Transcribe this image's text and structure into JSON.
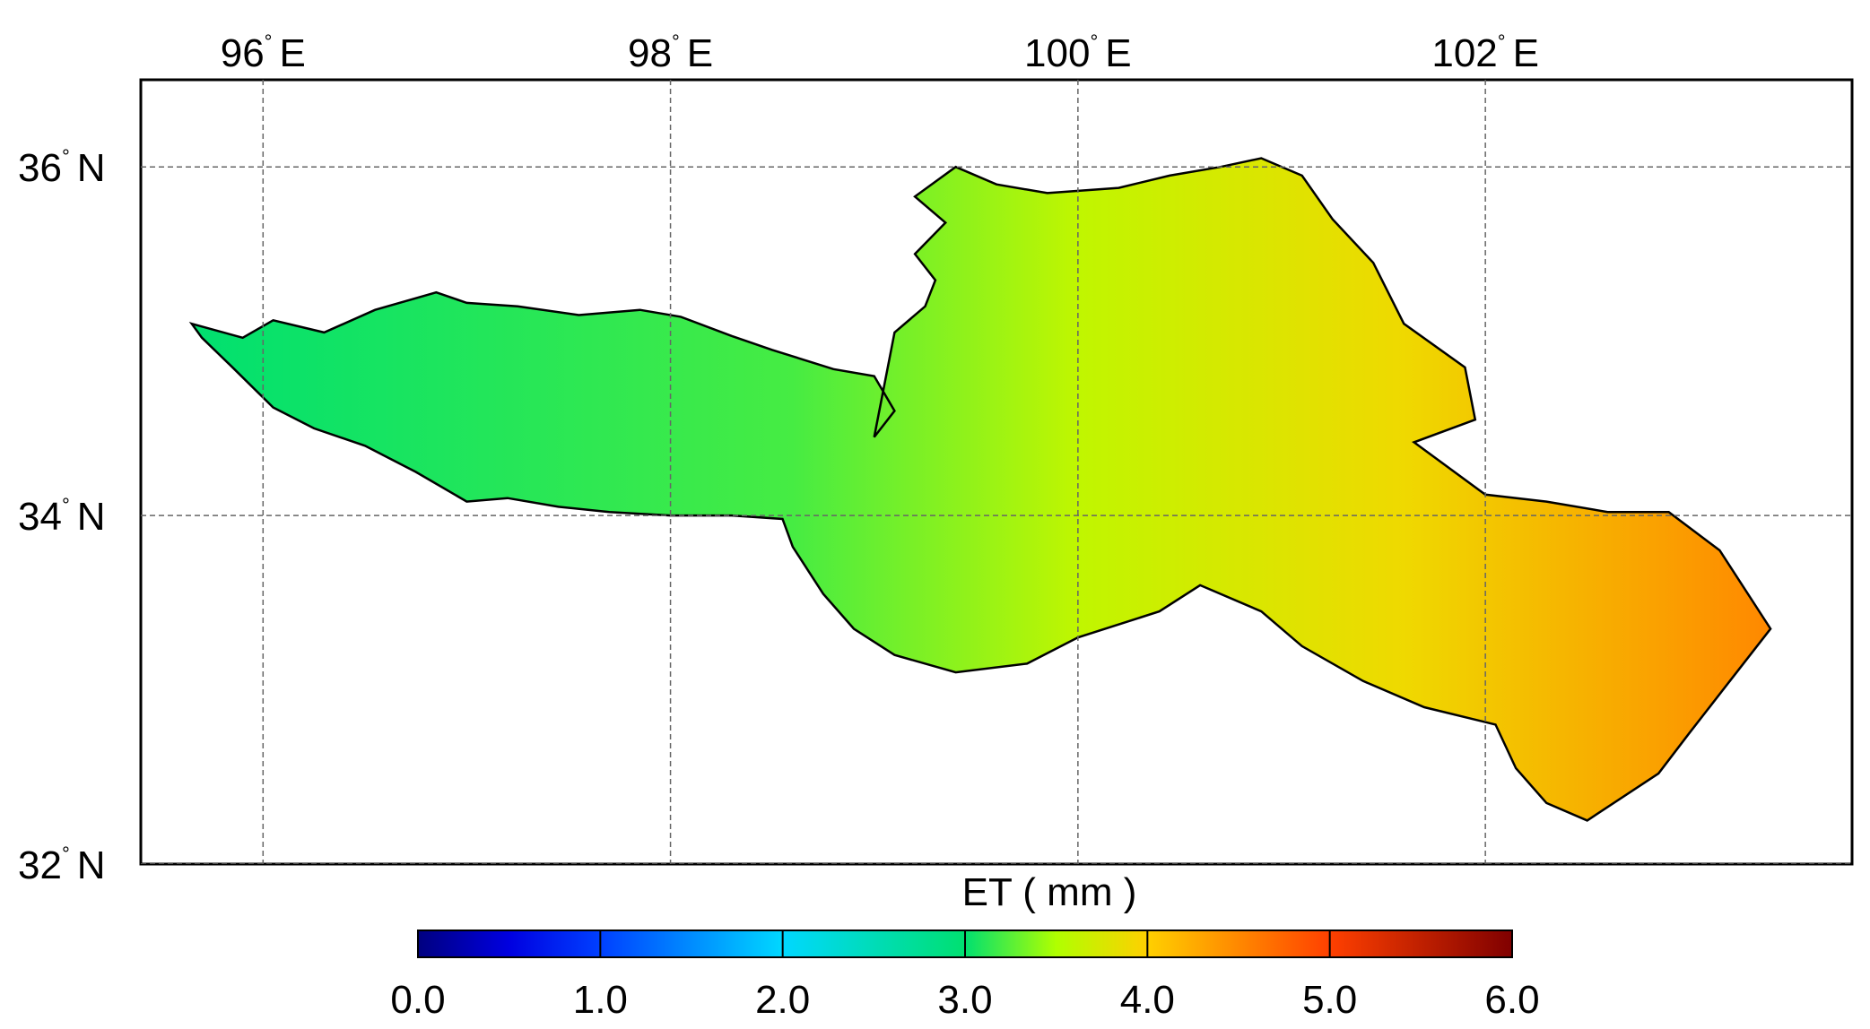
{
  "map": {
    "frame_extent": {
      "lon_min": 95.4,
      "lon_max": 103.8,
      "lat_min": 32.0,
      "lat_max": 36.5
    },
    "graticule": {
      "longitudes": [
        96,
        98,
        100,
        102
      ],
      "latitudes": [
        32,
        34,
        36
      ],
      "lon_labels": [
        {
          "value": "96",
          "deg": "°",
          "hemi": "E"
        },
        {
          "value": "98",
          "deg": "°",
          "hemi": "E"
        },
        {
          "value": "100",
          "deg": "°",
          "hemi": "E"
        },
        {
          "value": "102",
          "deg": "°",
          "hemi": "E"
        }
      ],
      "lat_labels": [
        {
          "value": "36",
          "deg": "°",
          "hemi": "N"
        },
        {
          "value": "34",
          "deg": "°",
          "hemi": "N"
        },
        {
          "value": "32",
          "deg": "°",
          "hemi": "N"
        }
      ]
    },
    "region": {
      "trend": "ET increases from west (about 3.0 mm) to southeast (about 4.5 mm)",
      "outline_lonlat": [
        [
          95.65,
          35.1
        ],
        [
          95.9,
          35.02
        ],
        [
          96.05,
          35.12
        ],
        [
          96.3,
          35.05
        ],
        [
          96.55,
          35.18
        ],
        [
          96.85,
          35.28
        ],
        [
          97.0,
          35.22
        ],
        [
          97.25,
          35.2
        ],
        [
          97.55,
          35.15
        ],
        [
          97.85,
          35.18
        ],
        [
          98.05,
          35.14
        ],
        [
          98.3,
          35.03
        ],
        [
          98.5,
          34.95
        ],
        [
          98.8,
          34.84
        ],
        [
          99.0,
          34.8
        ],
        [
          99.1,
          34.6
        ],
        [
          99.0,
          34.45
        ],
        [
          99.1,
          35.05
        ],
        [
          99.25,
          35.2
        ],
        [
          99.3,
          35.35
        ],
        [
          99.2,
          35.5
        ],
        [
          99.35,
          35.68
        ],
        [
          99.2,
          35.83
        ],
        [
          99.4,
          36.0
        ],
        [
          99.6,
          35.9
        ],
        [
          99.85,
          35.85
        ],
        [
          100.2,
          35.88
        ],
        [
          100.45,
          35.95
        ],
        [
          100.7,
          36.0
        ],
        [
          100.9,
          36.05
        ],
        [
          101.1,
          35.95
        ],
        [
          101.25,
          35.7
        ],
        [
          101.45,
          35.45
        ],
        [
          101.6,
          35.1
        ],
        [
          101.9,
          34.85
        ],
        [
          101.95,
          34.55
        ],
        [
          101.65,
          34.42
        ],
        [
          102.0,
          34.12
        ],
        [
          102.3,
          34.08
        ],
        [
          102.6,
          34.02
        ],
        [
          102.9,
          34.02
        ],
        [
          103.15,
          33.8
        ],
        [
          103.4,
          33.35
        ],
        [
          103.2,
          33.05
        ],
        [
          103.0,
          32.75
        ],
        [
          102.85,
          32.52
        ],
        [
          102.5,
          32.25
        ],
        [
          102.3,
          32.35
        ],
        [
          102.15,
          32.55
        ],
        [
          102.05,
          32.8
        ],
        [
          101.7,
          32.9
        ],
        [
          101.4,
          33.05
        ],
        [
          101.1,
          33.25
        ],
        [
          100.9,
          33.45
        ],
        [
          100.6,
          33.6
        ],
        [
          100.4,
          33.45
        ],
        [
          100.0,
          33.3
        ],
        [
          99.75,
          33.15
        ],
        [
          99.4,
          33.1
        ],
        [
          99.1,
          33.2
        ],
        [
          98.9,
          33.35
        ],
        [
          98.75,
          33.55
        ],
        [
          98.6,
          33.82
        ],
        [
          98.55,
          33.98
        ],
        [
          98.3,
          34.0
        ],
        [
          98.0,
          34.0
        ],
        [
          97.7,
          34.02
        ],
        [
          97.45,
          34.05
        ],
        [
          97.2,
          34.1
        ],
        [
          97.0,
          34.08
        ],
        [
          96.75,
          34.25
        ],
        [
          96.5,
          34.4
        ],
        [
          96.25,
          34.5
        ],
        [
          96.05,
          34.62
        ],
        [
          95.85,
          34.85
        ],
        [
          95.7,
          35.02
        ]
      ],
      "colorstops_lon_et": [
        {
          "lon": 95.6,
          "et": 3.0
        },
        {
          "lon": 98.6,
          "et": 3.2
        },
        {
          "lon": 100.0,
          "et": 3.6
        },
        {
          "lon": 101.6,
          "et": 3.9
        },
        {
          "lon": 103.4,
          "et": 4.5
        }
      ]
    }
  },
  "colorbar": {
    "title": "ET ( mm )",
    "min": 0.0,
    "max": 6.0,
    "tick_labels": [
      "0.0",
      "1.0",
      "2.0",
      "3.0",
      "4.0",
      "5.0",
      "6.0"
    ],
    "colors": [
      {
        "v": 0.0,
        "c": "#000080"
      },
      {
        "v": 0.5,
        "c": "#0000e0"
      },
      {
        "v": 1.0,
        "c": "#0040ff"
      },
      {
        "v": 2.0,
        "c": "#00d8ff"
      },
      {
        "v": 3.0,
        "c": "#00e070"
      },
      {
        "v": 3.5,
        "c": "#b0ff00"
      },
      {
        "v": 4.0,
        "c": "#ffd000"
      },
      {
        "v": 5.0,
        "c": "#ff4000"
      },
      {
        "v": 6.0,
        "c": "#800000"
      }
    ]
  }
}
